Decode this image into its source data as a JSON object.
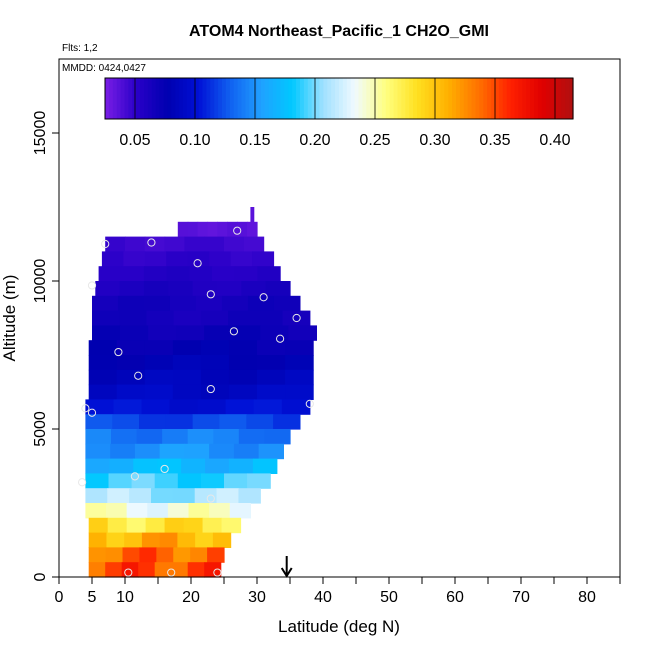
{
  "chart_data": {
    "type": "heatmap",
    "title": "ATOM4 Northeast_Pacific_1 CH2O_GMI",
    "subtitle_lines": [
      "Flts: 1,2",
      "MMDD: 0424,0427"
    ],
    "xlabel": "Latitude (deg N)",
    "ylabel": "Altitude (m)",
    "xlim": [
      0,
      85
    ],
    "ylim": [
      0,
      17500
    ],
    "x_ticks": [
      0,
      5,
      10,
      20,
      30,
      40,
      50,
      60,
      70,
      80
    ],
    "x_tick_labels": [
      "0",
      "5",
      "10",
      "20",
      "30",
      "40",
      "50",
      "60",
      "70",
      "80"
    ],
    "y_ticks": [
      0,
      5000,
      10000,
      15000
    ],
    "y_tick_labels": [
      "0",
      "5000",
      "10000",
      "15000"
    ],
    "colorbar": {
      "min": 0.025,
      "max": 0.415,
      "ticks": [
        0.05,
        0.1,
        0.15,
        0.2,
        0.25,
        0.3,
        0.35,
        0.4
      ],
      "tick_labels": [
        "0.05",
        "0.10",
        "0.15",
        "0.20",
        "0.25",
        "0.30",
        "0.35",
        "0.40"
      ],
      "colors": [
        "#7a1ee6",
        "#2a00c8",
        "#0000b0",
        "#0010d6",
        "#1060f0",
        "#20a0ff",
        "#00c8ff",
        "#a0e0ff",
        "#f0faff",
        "#ffff80",
        "#ffe020",
        "#ffb000",
        "#ff7000",
        "#ff2000",
        "#e00000",
        "#b01010"
      ]
    },
    "rows": [
      {
        "alt": 12250,
        "lat_min": 29.0,
        "lat_max": 29.5,
        "value": 0.035
      },
      {
        "alt": 11750,
        "lat_min": 18.0,
        "lat_max": 30.0,
        "value": 0.035
      },
      {
        "alt": 11250,
        "lat_min": 7.0,
        "lat_max": 31.0,
        "value": 0.045
      },
      {
        "alt": 10750,
        "lat_min": 6.5,
        "lat_max": 32.5,
        "value": 0.05
      },
      {
        "alt": 10250,
        "lat_min": 6.0,
        "lat_max": 33.5,
        "value": 0.055
      },
      {
        "alt": 9750,
        "lat_min": 5.5,
        "lat_max": 35.0,
        "value": 0.06
      },
      {
        "alt": 9250,
        "lat_min": 5.0,
        "lat_max": 36.5,
        "value": 0.065
      },
      {
        "alt": 8750,
        "lat_min": 5.0,
        "lat_max": 38.0,
        "value": 0.065
      },
      {
        "alt": 8250,
        "lat_min": 5.0,
        "lat_max": 39.0,
        "value": 0.07
      },
      {
        "alt": 7750,
        "lat_min": 4.5,
        "lat_max": 38.5,
        "value": 0.075
      },
      {
        "alt": 7250,
        "lat_min": 4.5,
        "lat_max": 38.5,
        "value": 0.08
      },
      {
        "alt": 6750,
        "lat_min": 4.5,
        "lat_max": 38.5,
        "value": 0.085
      },
      {
        "alt": 6250,
        "lat_min": 4.5,
        "lat_max": 38.5,
        "value": 0.09
      },
      {
        "alt": 5750,
        "lat_min": 4.0,
        "lat_max": 38.0,
        "value": 0.1
      },
      {
        "alt": 5250,
        "lat_min": 4.0,
        "lat_max": 36.5,
        "value": 0.12
      },
      {
        "alt": 4750,
        "lat_min": 4.0,
        "lat_max": 35.0,
        "value": 0.14
      },
      {
        "alt": 4250,
        "lat_min": 4.0,
        "lat_max": 34.0,
        "value": 0.15
      },
      {
        "alt": 3750,
        "lat_min": 4.0,
        "lat_max": 33.0,
        "value": 0.17
      },
      {
        "alt": 3250,
        "lat_min": 4.0,
        "lat_max": 32.0,
        "value": 0.19
      },
      {
        "alt": 2750,
        "lat_min": 4.0,
        "lat_max": 30.5,
        "value": 0.21
      },
      {
        "alt": 2250,
        "lat_min": 4.0,
        "lat_max": 29.0,
        "value": 0.24
      },
      {
        "alt": 1750,
        "lat_min": 4.5,
        "lat_max": 27.5,
        "value": 0.28
      },
      {
        "alt": 1250,
        "lat_min": 4.5,
        "lat_max": 26.0,
        "value": 0.31
      },
      {
        "alt": 750,
        "lat_min": 4.5,
        "lat_max": 25.0,
        "value": 0.34
      },
      {
        "alt": 250,
        "lat_min": 4.5,
        "lat_max": 24.5,
        "value": 0.35
      }
    ],
    "flight_points": [
      {
        "x": 7,
        "y": 11250
      },
      {
        "x": 14,
        "y": 11300
      },
      {
        "x": 27,
        "y": 11700
      },
      {
        "x": 21,
        "y": 10600
      },
      {
        "x": 5,
        "y": 9850
      },
      {
        "x": 23,
        "y": 9550
      },
      {
        "x": 31,
        "y": 9450
      },
      {
        "x": 36,
        "y": 8750
      },
      {
        "x": 26.5,
        "y": 8300
      },
      {
        "x": 33.5,
        "y": 8050
      },
      {
        "x": 9,
        "y": 7600
      },
      {
        "x": 12,
        "y": 6800
      },
      {
        "x": 23,
        "y": 6350
      },
      {
        "x": 4,
        "y": 5700
      },
      {
        "x": 5,
        "y": 5550
      },
      {
        "x": 38,
        "y": 5850
      },
      {
        "x": 16,
        "y": 3650
      },
      {
        "x": 11.5,
        "y": 3400
      },
      {
        "x": 3.5,
        "y": 3200
      },
      {
        "x": 23,
        "y": 2650
      },
      {
        "x": 10.5,
        "y": 150
      },
      {
        "x": 17,
        "y": 150
      },
      {
        "x": 24,
        "y": 150
      }
    ],
    "marker_arrow_x": 34.5
  }
}
